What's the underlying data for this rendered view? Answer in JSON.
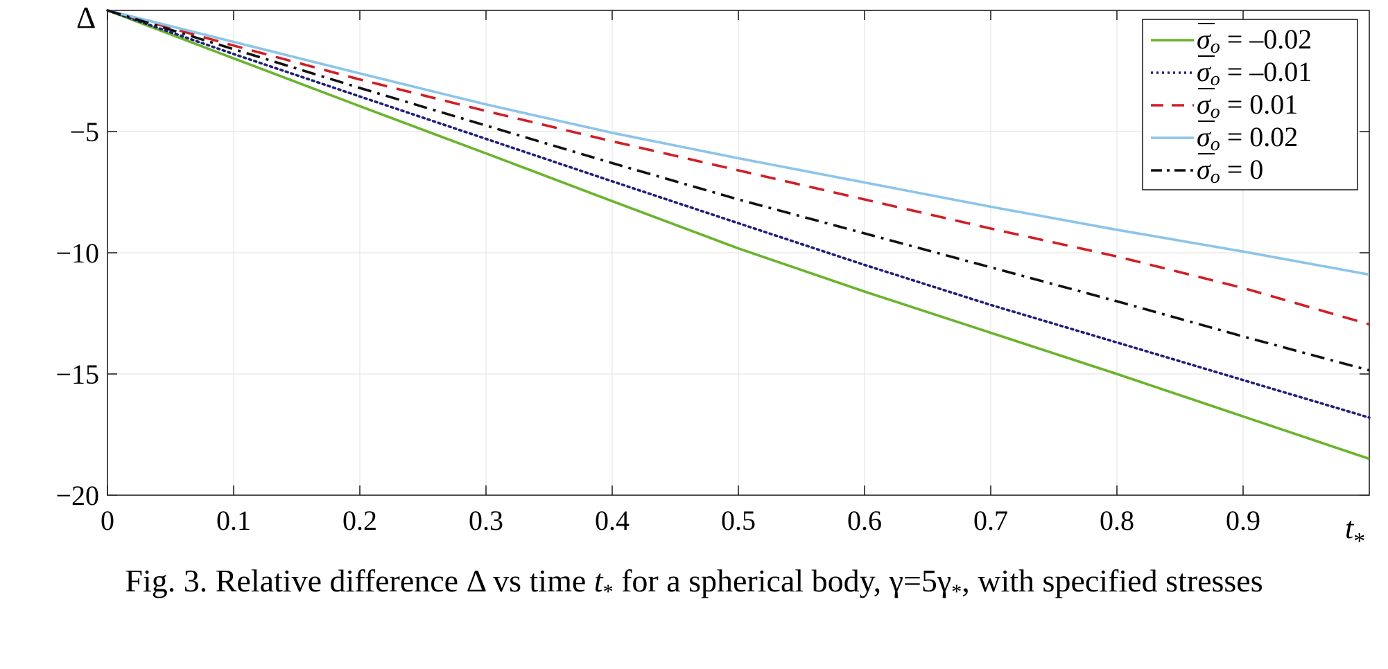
{
  "chart_data": {
    "type": "line",
    "ylabel": "Δ",
    "xlabel": "t",
    "xlabel_sub": "*",
    "xlim": [
      0,
      1
    ],
    "ylim": [
      -20,
      0
    ],
    "xticks": [
      0,
      0.1,
      0.2,
      0.3,
      0.4,
      0.5,
      0.6,
      0.7,
      0.8,
      0.9
    ],
    "xtick_labels": [
      "0",
      "0.1",
      "0.2",
      "0.3",
      "0.4",
      "0.5",
      "0.6",
      "0.7",
      "0.8",
      "0.9"
    ],
    "yticks": [
      -20,
      -15,
      -10,
      -5
    ],
    "ytick_labels": [
      "−20",
      "−15",
      "−10",
      "−5"
    ],
    "grid": true,
    "legend_position": "top-right",
    "legend_symbol": "σ",
    "legend_subscript": "o",
    "series": [
      {
        "name": "= –0.02",
        "color": "#6ab42d",
        "dash": "solid",
        "x": [
          0,
          0.1,
          0.2,
          0.3,
          0.4,
          0.5,
          0.6,
          0.7,
          0.8,
          0.9,
          1.0
        ],
        "y": [
          0,
          -1.98,
          -3.95,
          -5.9,
          -7.87,
          -9.82,
          -11.6,
          -13.3,
          -15.0,
          -16.75,
          -18.5
        ]
      },
      {
        "name": "= –0.01",
        "color": "#1f1f7a",
        "dash": "dotted",
        "x": [
          0,
          0.1,
          0.2,
          0.3,
          0.4,
          0.5,
          0.6,
          0.7,
          0.8,
          0.9,
          1.0
        ],
        "y": [
          0,
          -1.8,
          -3.55,
          -5.3,
          -7.05,
          -8.78,
          -10.5,
          -12.15,
          -13.7,
          -15.25,
          -16.8
        ]
      },
      {
        "name": "= 0.01",
        "color": "#d01f25",
        "dash": "dashed",
        "x": [
          0,
          0.1,
          0.2,
          0.3,
          0.4,
          0.5,
          0.6,
          0.7,
          0.8,
          0.9,
          1.0
        ],
        "y": [
          0,
          -1.45,
          -2.85,
          -4.15,
          -5.4,
          -6.6,
          -7.8,
          -9.0,
          -10.15,
          -11.45,
          -12.95
        ]
      },
      {
        "name": "= 0.02",
        "color": "#8cc4ea",
        "dash": "solid",
        "x": [
          0,
          0.1,
          0.2,
          0.3,
          0.4,
          0.5,
          0.6,
          0.7,
          0.8,
          0.9,
          1.0
        ],
        "y": [
          0,
          -1.3,
          -2.6,
          -3.88,
          -5.05,
          -6.1,
          -7.1,
          -8.1,
          -9.05,
          -9.95,
          -10.9
        ]
      },
      {
        "name": "= 0",
        "color": "#111111",
        "dash": "dashdot",
        "x": [
          0,
          0.1,
          0.2,
          0.3,
          0.4,
          0.5,
          0.6,
          0.7,
          0.8,
          0.9,
          1.0
        ],
        "y": [
          0,
          -1.6,
          -3.2,
          -4.75,
          -6.3,
          -7.8,
          -9.2,
          -10.6,
          -12.0,
          -13.45,
          -14.85
        ]
      }
    ],
    "caption": {
      "part1": "Fig. 3. Relative difference Δ vs time ",
      "t": "t",
      "star": "*",
      "part2": " for a spherical body, γ=5γ",
      "part3": ", with specified stresses"
    }
  }
}
